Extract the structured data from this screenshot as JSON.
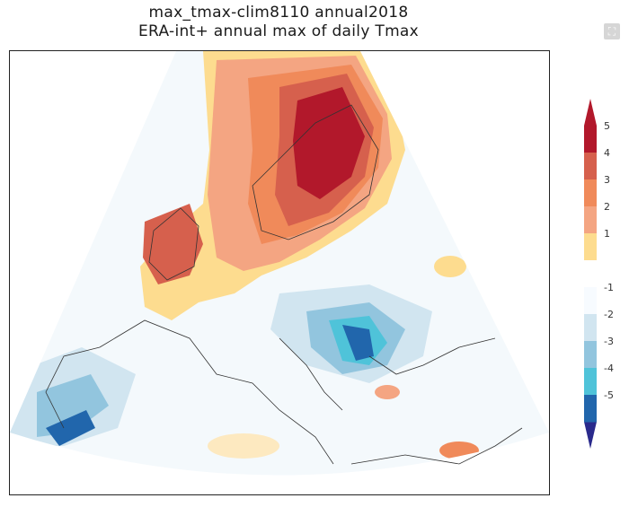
{
  "title": {
    "line1": "max_tmax-clim8110 annual2018",
    "line2": "ERA-int+ annual max of daily Tmax"
  },
  "toolbar": {
    "expand_icon": "expand-icon"
  },
  "colorbar": {
    "levels": [
      {
        "label": "5",
        "value": 5,
        "color": "#b2182b"
      },
      {
        "label": "4",
        "value": 4,
        "color": "#d6604d"
      },
      {
        "label": "3",
        "value": 3,
        "color": "#f08a5a"
      },
      {
        "label": "2",
        "value": 2,
        "color": "#f4a582"
      },
      {
        "label": "1",
        "value": 1,
        "color": "#fddc8f"
      },
      {
        "label": "-1",
        "value": -1,
        "color": "#f7fbff"
      },
      {
        "label": "-2",
        "value": -2,
        "color": "#d1e5f0"
      },
      {
        "label": "-3",
        "value": -3,
        "color": "#92c5de"
      },
      {
        "label": "-4",
        "value": -4,
        "color": "#4fc3d9"
      },
      {
        "label": "-5",
        "value": -5,
        "color": "#2166ac"
      }
    ],
    "top_cap_color": "#b2182b",
    "bottom_cap_color": "#2a2a8c",
    "neutral_color": "#ffffff"
  }
}
